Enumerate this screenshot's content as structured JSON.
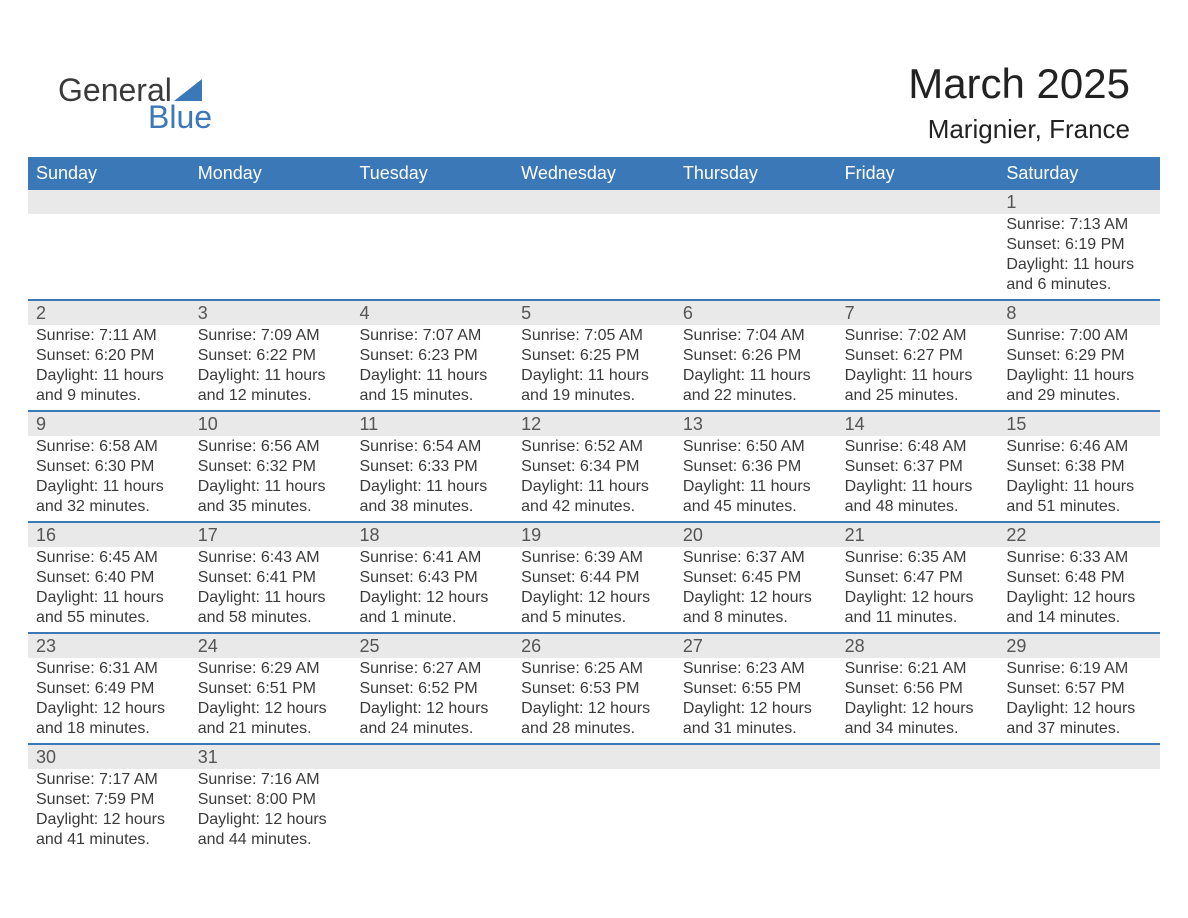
{
  "brand": {
    "line1": "General",
    "line2": "Blue",
    "accent_color": "#3a78b8",
    "text_color": "#3a3a3a"
  },
  "title": {
    "month_year": "March 2025",
    "location": "Marignier, France",
    "title_fontsize_pt": 32,
    "location_fontsize_pt": 20
  },
  "colors": {
    "header_bg": "#3a78b8",
    "header_fg": "#ffffff",
    "band_bg": "#e9e9e9",
    "band_fg": "#555555",
    "week_divider": "#3a78b8",
    "body_text": "#3a3a3a",
    "page_bg": "#ffffff"
  },
  "layout": {
    "columns": 7,
    "body_fontsize_pt": 12,
    "daynum_fontsize_pt": 14,
    "header_fontsize_pt": 14
  },
  "weekdays": [
    "Sunday",
    "Monday",
    "Tuesday",
    "Wednesday",
    "Thursday",
    "Friday",
    "Saturday"
  ],
  "weeks": [
    [
      {
        "n": "",
        "sr": "",
        "ss": "",
        "dl": ""
      },
      {
        "n": "",
        "sr": "",
        "ss": "",
        "dl": ""
      },
      {
        "n": "",
        "sr": "",
        "ss": "",
        "dl": ""
      },
      {
        "n": "",
        "sr": "",
        "ss": "",
        "dl": ""
      },
      {
        "n": "",
        "sr": "",
        "ss": "",
        "dl": ""
      },
      {
        "n": "",
        "sr": "",
        "ss": "",
        "dl": ""
      },
      {
        "n": "1",
        "sr": "Sunrise: 7:13 AM",
        "ss": "Sunset: 6:19 PM",
        "dl": "Daylight: 11 hours and 6 minutes."
      }
    ],
    [
      {
        "n": "2",
        "sr": "Sunrise: 7:11 AM",
        "ss": "Sunset: 6:20 PM",
        "dl": "Daylight: 11 hours and 9 minutes."
      },
      {
        "n": "3",
        "sr": "Sunrise: 7:09 AM",
        "ss": "Sunset: 6:22 PM",
        "dl": "Daylight: 11 hours and 12 minutes."
      },
      {
        "n": "4",
        "sr": "Sunrise: 7:07 AM",
        "ss": "Sunset: 6:23 PM",
        "dl": "Daylight: 11 hours and 15 minutes."
      },
      {
        "n": "5",
        "sr": "Sunrise: 7:05 AM",
        "ss": "Sunset: 6:25 PM",
        "dl": "Daylight: 11 hours and 19 minutes."
      },
      {
        "n": "6",
        "sr": "Sunrise: 7:04 AM",
        "ss": "Sunset: 6:26 PM",
        "dl": "Daylight: 11 hours and 22 minutes."
      },
      {
        "n": "7",
        "sr": "Sunrise: 7:02 AM",
        "ss": "Sunset: 6:27 PM",
        "dl": "Daylight: 11 hours and 25 minutes."
      },
      {
        "n": "8",
        "sr": "Sunrise: 7:00 AM",
        "ss": "Sunset: 6:29 PM",
        "dl": "Daylight: 11 hours and 29 minutes."
      }
    ],
    [
      {
        "n": "9",
        "sr": "Sunrise: 6:58 AM",
        "ss": "Sunset: 6:30 PM",
        "dl": "Daylight: 11 hours and 32 minutes."
      },
      {
        "n": "10",
        "sr": "Sunrise: 6:56 AM",
        "ss": "Sunset: 6:32 PM",
        "dl": "Daylight: 11 hours and 35 minutes."
      },
      {
        "n": "11",
        "sr": "Sunrise: 6:54 AM",
        "ss": "Sunset: 6:33 PM",
        "dl": "Daylight: 11 hours and 38 minutes."
      },
      {
        "n": "12",
        "sr": "Sunrise: 6:52 AM",
        "ss": "Sunset: 6:34 PM",
        "dl": "Daylight: 11 hours and 42 minutes."
      },
      {
        "n": "13",
        "sr": "Sunrise: 6:50 AM",
        "ss": "Sunset: 6:36 PM",
        "dl": "Daylight: 11 hours and 45 minutes."
      },
      {
        "n": "14",
        "sr": "Sunrise: 6:48 AM",
        "ss": "Sunset: 6:37 PM",
        "dl": "Daylight: 11 hours and 48 minutes."
      },
      {
        "n": "15",
        "sr": "Sunrise: 6:46 AM",
        "ss": "Sunset: 6:38 PM",
        "dl": "Daylight: 11 hours and 51 minutes."
      }
    ],
    [
      {
        "n": "16",
        "sr": "Sunrise: 6:45 AM",
        "ss": "Sunset: 6:40 PM",
        "dl": "Daylight: 11 hours and 55 minutes."
      },
      {
        "n": "17",
        "sr": "Sunrise: 6:43 AM",
        "ss": "Sunset: 6:41 PM",
        "dl": "Daylight: 11 hours and 58 minutes."
      },
      {
        "n": "18",
        "sr": "Sunrise: 6:41 AM",
        "ss": "Sunset: 6:43 PM",
        "dl": "Daylight: 12 hours and 1 minute."
      },
      {
        "n": "19",
        "sr": "Sunrise: 6:39 AM",
        "ss": "Sunset: 6:44 PM",
        "dl": "Daylight: 12 hours and 5 minutes."
      },
      {
        "n": "20",
        "sr": "Sunrise: 6:37 AM",
        "ss": "Sunset: 6:45 PM",
        "dl": "Daylight: 12 hours and 8 minutes."
      },
      {
        "n": "21",
        "sr": "Sunrise: 6:35 AM",
        "ss": "Sunset: 6:47 PM",
        "dl": "Daylight: 12 hours and 11 minutes."
      },
      {
        "n": "22",
        "sr": "Sunrise: 6:33 AM",
        "ss": "Sunset: 6:48 PM",
        "dl": "Daylight: 12 hours and 14 minutes."
      }
    ],
    [
      {
        "n": "23",
        "sr": "Sunrise: 6:31 AM",
        "ss": "Sunset: 6:49 PM",
        "dl": "Daylight: 12 hours and 18 minutes."
      },
      {
        "n": "24",
        "sr": "Sunrise: 6:29 AM",
        "ss": "Sunset: 6:51 PM",
        "dl": "Daylight: 12 hours and 21 minutes."
      },
      {
        "n": "25",
        "sr": "Sunrise: 6:27 AM",
        "ss": "Sunset: 6:52 PM",
        "dl": "Daylight: 12 hours and 24 minutes."
      },
      {
        "n": "26",
        "sr": "Sunrise: 6:25 AM",
        "ss": "Sunset: 6:53 PM",
        "dl": "Daylight: 12 hours and 28 minutes."
      },
      {
        "n": "27",
        "sr": "Sunrise: 6:23 AM",
        "ss": "Sunset: 6:55 PM",
        "dl": "Daylight: 12 hours and 31 minutes."
      },
      {
        "n": "28",
        "sr": "Sunrise: 6:21 AM",
        "ss": "Sunset: 6:56 PM",
        "dl": "Daylight: 12 hours and 34 minutes."
      },
      {
        "n": "29",
        "sr": "Sunrise: 6:19 AM",
        "ss": "Sunset: 6:57 PM",
        "dl": "Daylight: 12 hours and 37 minutes."
      }
    ],
    [
      {
        "n": "30",
        "sr": "Sunrise: 7:17 AM",
        "ss": "Sunset: 7:59 PM",
        "dl": "Daylight: 12 hours and 41 minutes."
      },
      {
        "n": "31",
        "sr": "Sunrise: 7:16 AM",
        "ss": "Sunset: 8:00 PM",
        "dl": "Daylight: 12 hours and 44 minutes."
      },
      {
        "n": "",
        "sr": "",
        "ss": "",
        "dl": ""
      },
      {
        "n": "",
        "sr": "",
        "ss": "",
        "dl": ""
      },
      {
        "n": "",
        "sr": "",
        "ss": "",
        "dl": ""
      },
      {
        "n": "",
        "sr": "",
        "ss": "",
        "dl": ""
      },
      {
        "n": "",
        "sr": "",
        "ss": "",
        "dl": ""
      }
    ]
  ]
}
